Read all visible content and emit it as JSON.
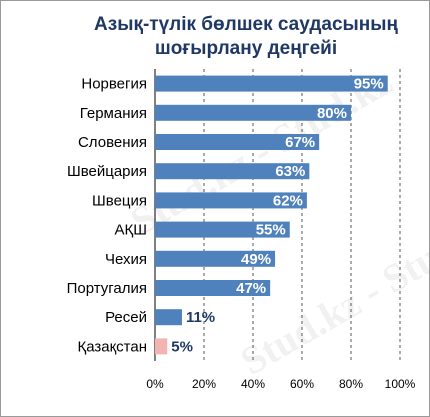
{
  "chart_data": {
    "type": "bar",
    "orientation": "horizontal",
    "title_lines": [
      "Азық-түлік бөлшек саудасының",
      "шоғырлану деңгейі"
    ],
    "categories": [
      "Норвегия",
      "Германия",
      "Словения",
      "Швейцария",
      "Швеция",
      "АҚШ",
      "Чехия",
      "Португалия",
      "Ресей",
      "Қазақстан"
    ],
    "values": [
      95,
      80,
      67,
      63,
      62,
      55,
      49,
      47,
      11,
      5
    ],
    "data_labels": [
      "95%",
      "80%",
      "67%",
      "63%",
      "62%",
      "55%",
      "49%",
      "47%",
      "11%",
      "5%"
    ],
    "bar_colors": [
      "#4f81bd",
      "#4f81bd",
      "#4f81bd",
      "#4f81bd",
      "#4f81bd",
      "#4f81bd",
      "#4f81bd",
      "#4f81bd",
      "#4f81bd",
      "#f2b3b3"
    ],
    "label_colors": [
      "#ffffff",
      "#ffffff",
      "#ffffff",
      "#ffffff",
      "#ffffff",
      "#ffffff",
      "#ffffff",
      "#ffffff",
      "#1f3864",
      "#1f3864"
    ],
    "xlim": [
      0,
      100
    ],
    "x_ticks": [
      0,
      20,
      40,
      60,
      80,
      100
    ],
    "x_tick_labels": [
      "0%",
      "20%",
      "40%",
      "60%",
      "80%",
      "100%"
    ],
    "grid": "vertical-dashed",
    "legend": "none"
  },
  "watermark_text": "Stud.kz - Stud.kz"
}
